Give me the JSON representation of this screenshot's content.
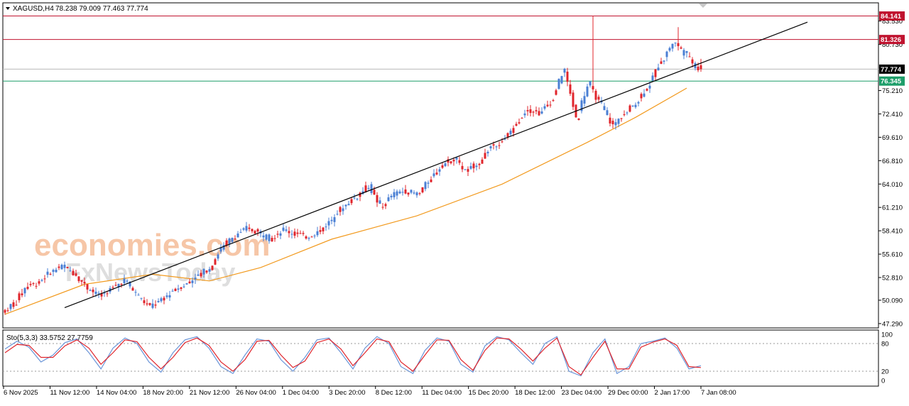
{
  "header": {
    "symbol": "XAGUSD,H4",
    "ohlc": "78.238 79.009 77.463 77.774"
  },
  "watermark": {
    "line1": "economies.com",
    "line2": "FxNewsToday"
  },
  "colors": {
    "bull": "#4a7fd4",
    "bear": "#e0242b",
    "ma": "#f29a1e",
    "resistance": "#c0132f",
    "support": "#1e9e6a",
    "current": "#000000",
    "trendline": "#000000",
    "stoch_main": "#6a95d8",
    "stoch_signal": "#e0242b",
    "watermark1": "#f4b48a",
    "watermark2": "#d7d7d7"
  },
  "chart_data": [
    {
      "type": "candlestick",
      "symbol": "XAGUSD",
      "timeframe": "H4",
      "ylim": [
        47.29,
        86.0
      ],
      "y_ticks": [
        "83.530",
        "80.730",
        "75.210",
        "72.410",
        "69.610",
        "66.810",
        "64.010",
        "61.210",
        "58.410",
        "55.610",
        "52.810",
        "50.090",
        "47.290"
      ],
      "x_ticks": [
        "6 Nov 2025",
        "11 Nov 12:00",
        "14 Nov 04:00",
        "18 Nov 20:00",
        "21 Nov 12:00",
        "26 Nov 04:00",
        "1 Dec 04:00",
        "3 Dec 20:00",
        "8 Dec 12:00",
        "11 Dec 04:00",
        "15 Dec 20:00",
        "18 Dec 12:00",
        "23 Dec 04:00",
        "29 Dec 00:00",
        "2 Jan 17:00",
        "7 Jan 08:00"
      ],
      "anchors": [
        [
          48.6,
          "u"
        ],
        [
          49.8,
          "u"
        ],
        [
          51.8,
          "u"
        ],
        [
          52.2,
          "u"
        ],
        [
          53.6,
          "u"
        ],
        [
          54.2,
          "u"
        ],
        [
          53.2,
          "d"
        ],
        [
          51.5,
          "d"
        ],
        [
          50.6,
          "d"
        ],
        [
          51.5,
          "u"
        ],
        [
          52.5,
          "u"
        ],
        [
          50.8,
          "d"
        ],
        [
          49.3,
          "d"
        ],
        [
          50.0,
          "u"
        ],
        [
          51.3,
          "u"
        ],
        [
          52.0,
          "u"
        ],
        [
          53.0,
          "u"
        ],
        [
          54.0,
          "u"
        ],
        [
          56.5,
          "u"
        ],
        [
          57.8,
          "u"
        ],
        [
          58.7,
          "u"
        ],
        [
          58.2,
          "d"
        ],
        [
          57.4,
          "d"
        ],
        [
          58.6,
          "u"
        ],
        [
          58.0,
          "d"
        ],
        [
          57.7,
          "d"
        ],
        [
          58.4,
          "u"
        ],
        [
          59.8,
          "u"
        ],
        [
          61.5,
          "u"
        ],
        [
          62.5,
          "u"
        ],
        [
          63.8,
          "u"
        ],
        [
          61.2,
          "d"
        ],
        [
          62.8,
          "u"
        ],
        [
          63.2,
          "u"
        ],
        [
          62.8,
          "d"
        ],
        [
          64.5,
          "u"
        ],
        [
          66.3,
          "u"
        ],
        [
          67.0,
          "u"
        ],
        [
          65.5,
          "d"
        ],
        [
          66.5,
          "u"
        ],
        [
          68.5,
          "u"
        ],
        [
          69.2,
          "u"
        ],
        [
          71.0,
          "u"
        ],
        [
          73.0,
          "u"
        ],
        [
          72.5,
          "d"
        ],
        [
          74.0,
          "u"
        ],
        [
          77.8,
          "u"
        ],
        [
          72.0,
          "d"
        ],
        [
          76.0,
          "u"
        ],
        [
          73.5,
          "d"
        ],
        [
          71.0,
          "d"
        ],
        [
          72.5,
          "u"
        ],
        [
          74.0,
          "u"
        ],
        [
          76.0,
          "u"
        ],
        [
          79.0,
          "u"
        ],
        [
          81.0,
          "u"
        ],
        [
          79.5,
          "d"
        ],
        [
          77.8,
          "d"
        ]
      ],
      "spikes": [
        {
          "value": 84.141,
          "type": "high"
        },
        {
          "value": 82.8,
          "type": "high"
        }
      ],
      "moving_average": [
        [
          48.4,
          0
        ],
        [
          52.0,
          28
        ],
        [
          53.2,
          52
        ],
        [
          52.4,
          72
        ],
        [
          54.0,
          90
        ],
        [
          57.4,
          115
        ],
        [
          60.2,
          145
        ],
        [
          64.0,
          175
        ],
        [
          69.0,
          205
        ],
        [
          72.0,
          222
        ],
        [
          75.5,
          240
        ]
      ],
      "horizontal_levels": [
        {
          "value": 84.141,
          "label": "84.141",
          "role": "resistance"
        },
        {
          "value": 81.326,
          "label": "81.326",
          "role": "resistance"
        },
        {
          "value": 77.774,
          "label": "77.774",
          "role": "current"
        },
        {
          "value": 76.345,
          "label": "76.345",
          "role": "support"
        }
      ],
      "trendline": {
        "from": [
          21,
          49.2
        ],
        "to": [
          245,
          78.5
        ]
      }
    },
    {
      "type": "line",
      "name": "Sto(5,3,3) 33.5752 27.7759",
      "ylim": [
        0,
        100
      ],
      "y_ticks": [
        "100",
        "80",
        "20",
        "0"
      ],
      "levels": [
        80,
        20
      ],
      "main_values": [
        68,
        85,
        72,
        40,
        55,
        82,
        90,
        60,
        25,
        70,
        92,
        80,
        40,
        18,
        60,
        88,
        95,
        70,
        30,
        15,
        55,
        90,
        85,
        45,
        20,
        50,
        88,
        92,
        60,
        25,
        70,
        95,
        80,
        30,
        15,
        65,
        92,
        85,
        35,
        18,
        75,
        95,
        88,
        60,
        35,
        80,
        95,
        20,
        10,
        60,
        90,
        15,
        30,
        80,
        85,
        92,
        70,
        25,
        32
      ],
      "signal_values": [
        60,
        78,
        76,
        50,
        50,
        75,
        88,
        70,
        35,
        60,
        88,
        84,
        50,
        25,
        50,
        82,
        92,
        76,
        40,
        20,
        45,
        85,
        87,
        55,
        28,
        42,
        82,
        90,
        68,
        32,
        60,
        90,
        84,
        40,
        20,
        55,
        88,
        87,
        45,
        22,
        65,
        92,
        90,
        68,
        42,
        70,
        92,
        30,
        12,
        50,
        85,
        25,
        25,
        72,
        83,
        90,
        76,
        30,
        28
      ]
    }
  ]
}
